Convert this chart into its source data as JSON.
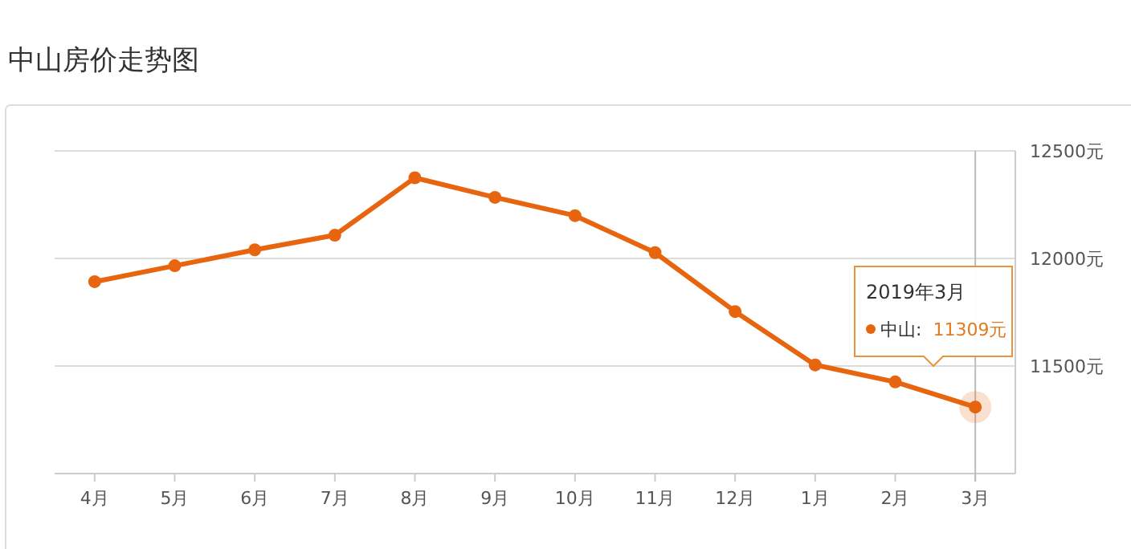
{
  "chart_data": {
    "type": "line",
    "title": "中山房价走势图",
    "categories": [
      "4月",
      "5月",
      "6月",
      "7月",
      "8月",
      "9月",
      "10月",
      "11月",
      "12月",
      "1月",
      "2月",
      "3月"
    ],
    "series": [
      {
        "color": "#e8650f",
        "values": [
          11892,
          11966,
          12040,
          12108,
          12375,
          12284,
          12199,
          12027,
          11753,
          11505,
          11426,
          11309
        ]
      }
    ],
    "ylim": [
      11000,
      12500
    ],
    "yticks": [
      {
        "value": 11000,
        "label": null
      },
      {
        "value": 11500,
        "label": "11500元"
      },
      {
        "value": 12000,
        "label": "12000元"
      },
      {
        "value": 12500,
        "label": "12500元"
      }
    ],
    "grid": "y",
    "marker": "circle",
    "line_style": "solid",
    "ref_lines": [
      {
        "axis": "x",
        "value": "3月",
        "color": "#bbbbbb"
      }
    ],
    "annotations": [
      "2019年3月",
      "中山:  11309元"
    ]
  }
}
